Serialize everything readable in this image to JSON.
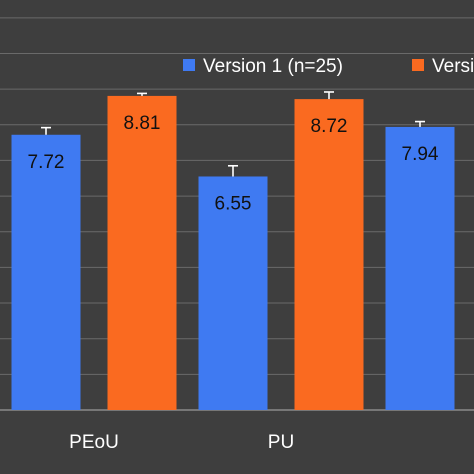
{
  "colors": {
    "background": "#3e3e3e",
    "grid": "#6a6a6a",
    "series_1": "#3f7af2",
    "series_2": "#fa6a20",
    "error_bar": "#ffffff"
  },
  "chart_data": {
    "type": "bar",
    "categories": [
      "PEoU",
      "PU",
      ""
    ],
    "series": [
      {
        "name": "Version 1 (n=25)",
        "values": [
          7.72,
          6.55,
          7.94
        ],
        "labels": [
          "7.72",
          "6.55",
          "7.94"
        ],
        "errors": [
          0.2,
          0.3,
          0.15
        ]
      },
      {
        "name": "Versi",
        "values": [
          8.81,
          8.72,
          null
        ],
        "labels": [
          "8.81",
          "8.72",
          ""
        ],
        "errors": [
          0.07,
          0.2,
          null
        ]
      }
    ],
    "ylim": [
      0,
      11.5
    ],
    "grid": true,
    "legend_position": "top-right"
  }
}
